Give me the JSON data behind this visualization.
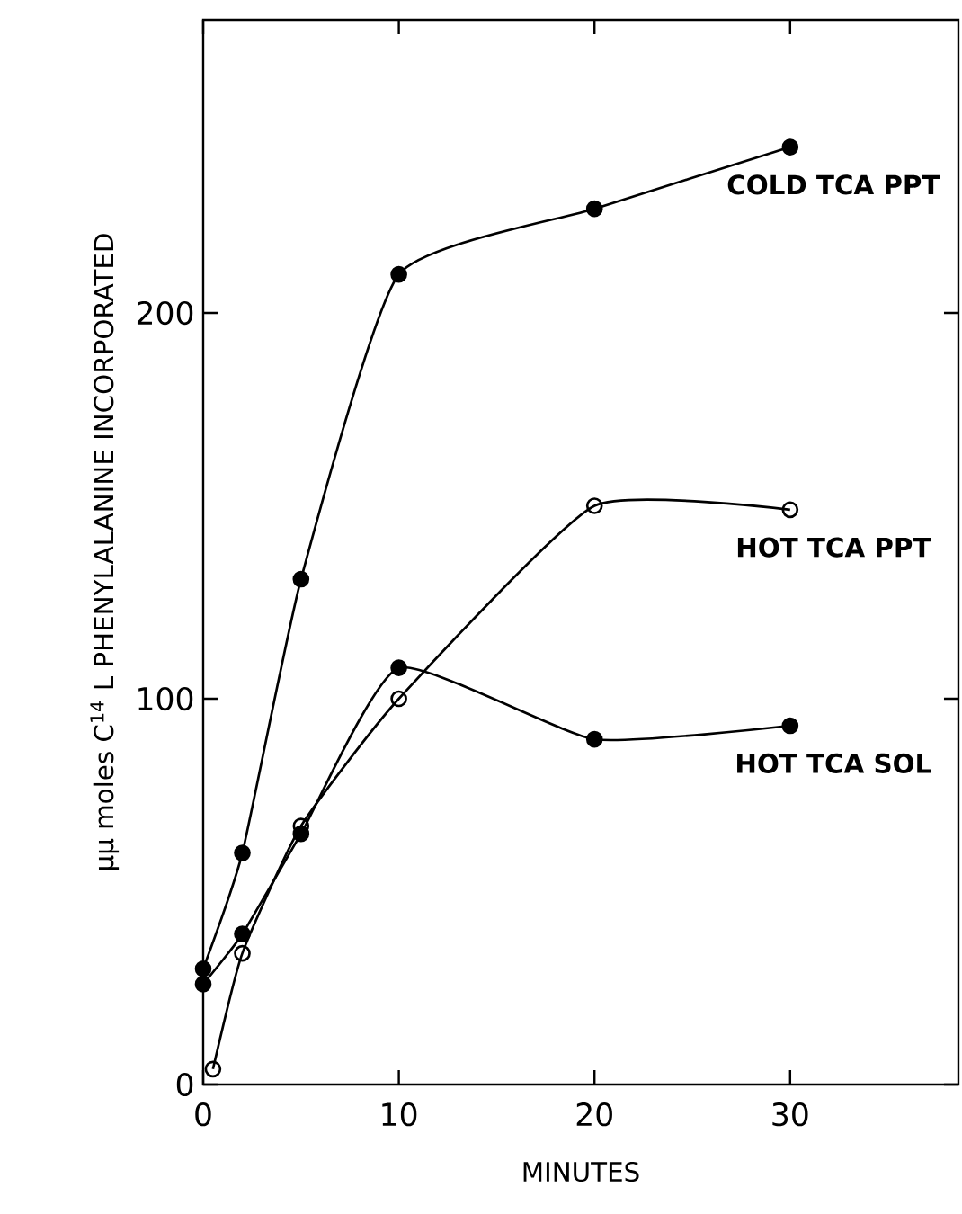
{
  "chart_data": {
    "type": "line",
    "xlabel": "MINUTES",
    "ylabel": "μμ moles C$^{14}$ L PHENYLALANINE INCORPORATED",
    "xlim": [
      0,
      38.6
    ],
    "ylim": [
      0,
      276
    ],
    "xticks": [
      0,
      10,
      20,
      30
    ],
    "yticks": [
      0,
      100,
      200
    ],
    "marker": "circle",
    "grid": false,
    "legend": false,
    "series": [
      {
        "name": "COLD TCA PPT",
        "color": "#000000",
        "x": [
          0,
          2,
          5,
          10,
          20,
          30
        ],
        "values": [
          30,
          60,
          131,
          210,
          227,
          243
        ]
      },
      {
        "name": "HOT TCA PPT",
        "color": "#000000",
        "marker": "open circle",
        "x": [
          0.5,
          2,
          5,
          10,
          20,
          30
        ],
        "values": [
          4,
          34,
          67,
          100,
          150,
          149
        ]
      },
      {
        "name": "HOT TCA SOL",
        "color": "#000000",
        "x": [
          0,
          2,
          5,
          10,
          20,
          30
        ],
        "values": [
          26,
          39,
          65,
          108,
          89.5,
          93
        ]
      }
    ]
  }
}
